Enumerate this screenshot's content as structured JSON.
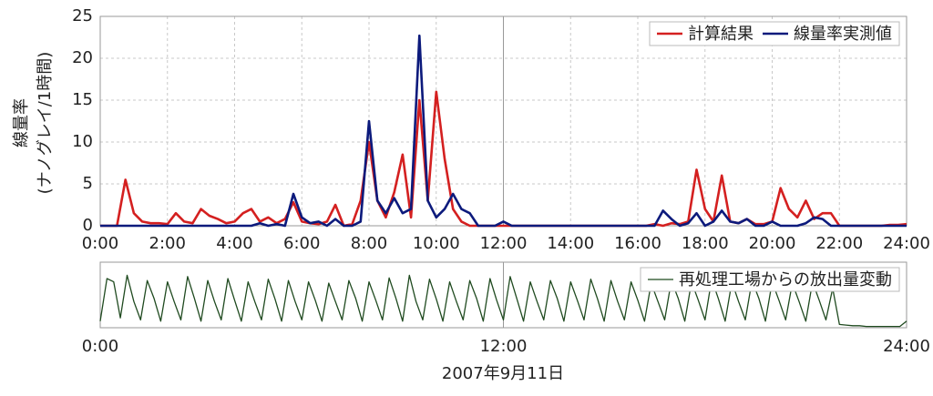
{
  "chart_data": [
    {
      "type": "line",
      "ylabel": [
        "線量率",
        "(ナノグレイ/1時間)"
      ],
      "x": [
        0,
        0.25,
        0.5,
        0.75,
        1,
        1.25,
        1.5,
        1.75,
        2,
        2.25,
        2.5,
        2.75,
        3,
        3.25,
        3.5,
        3.75,
        4,
        4.25,
        4.5,
        4.75,
        5,
        5.25,
        5.5,
        5.75,
        6,
        6.25,
        6.5,
        6.75,
        7,
        7.25,
        7.5,
        7.75,
        8,
        8.25,
        8.5,
        8.75,
        9,
        9.25,
        9.5,
        9.75,
        10,
        10.25,
        10.5,
        10.75,
        11,
        11.25,
        11.5,
        11.75,
        12,
        12.25,
        12.5,
        12.75,
        13,
        13.25,
        13.5,
        13.75,
        14,
        14.25,
        14.5,
        14.75,
        15,
        15.25,
        15.5,
        15.75,
        16,
        16.25,
        16.5,
        16.75,
        17,
        17.25,
        17.5,
        17.75,
        18,
        18.25,
        18.5,
        18.75,
        19,
        19.25,
        19.5,
        19.75,
        20,
        20.25,
        20.5,
        20.75,
        21,
        21.25,
        21.5,
        21.75,
        22,
        22.25,
        22.5,
        22.75,
        23,
        23.25,
        23.5,
        23.75,
        24
      ],
      "series": [
        {
          "name": "計算結果",
          "color": "#d42020",
          "values": [
            0,
            0,
            0,
            5.5,
            1.5,
            0.5,
            0.3,
            0.3,
            0.2,
            1.5,
            0.5,
            0.3,
            2,
            1.2,
            0.8,
            0.3,
            0.5,
            1.5,
            2,
            0.5,
            1,
            0.3,
            0.8,
            2.8,
            0.5,
            0.3,
            0.2,
            0.5,
            2.5,
            0,
            0.2,
            3,
            10,
            3,
            1,
            4,
            8.5,
            1,
            15,
            3,
            16,
            8,
            2,
            0.5,
            0,
            0,
            0,
            0,
            0,
            0,
            0,
            0,
            0,
            0,
            0,
            0,
            0,
            0,
            0,
            0,
            0,
            0,
            0,
            0,
            0,
            0,
            0.2,
            0,
            0.3,
            0.2,
            0.5,
            6.7,
            2,
            0.5,
            6,
            0.5,
            0.3,
            0.8,
            0.2,
            0.2,
            0.5,
            4.5,
            2,
            1,
            3,
            0.8,
            1.5,
            1.5,
            0,
            0,
            0,
            0,
            0,
            0,
            0.1,
            0.1,
            0.2
          ]
        },
        {
          "name": "線量率実測値",
          "color": "#0c1a7c",
          "values": [
            0,
            0,
            0,
            0,
            0,
            0,
            0,
            0,
            0,
            0,
            0,
            0,
            0,
            0,
            0,
            0,
            0,
            0,
            0,
            0.3,
            0,
            0.2,
            0,
            3.8,
            1,
            0.3,
            0.5,
            0,
            0.8,
            0,
            0,
            0.5,
            12.5,
            3,
            1.5,
            3.3,
            1.5,
            2,
            22.7,
            3,
            1,
            2,
            3.8,
            2,
            1.5,
            0,
            0,
            0,
            0.5,
            0,
            0,
            0,
            0,
            0,
            0,
            0,
            0,
            0,
            0,
            0,
            0,
            0,
            0,
            0,
            0,
            0,
            0,
            1.8,
            0.8,
            0,
            0.3,
            1.5,
            0,
            0.5,
            1.8,
            0.5,
            0.3,
            0.8,
            0,
            0,
            0.5,
            0,
            0,
            0,
            0.3,
            1,
            0.8,
            0,
            0,
            0,
            0,
            0,
            0,
            0,
            0,
            0,
            0
          ]
        }
      ],
      "xlim": [
        0,
        24
      ],
      "xticks": [
        {
          "value": 0,
          "label": "0:00"
        },
        {
          "value": 2,
          "label": "2:00"
        },
        {
          "value": 4,
          "label": "4:00"
        },
        {
          "value": 6,
          "label": "6:00"
        },
        {
          "value": 8,
          "label": "8:00"
        },
        {
          "value": 10,
          "label": "10:00"
        },
        {
          "value": 12,
          "label": "12:00"
        },
        {
          "value": 14,
          "label": "14:00"
        },
        {
          "value": 16,
          "label": "16:00"
        },
        {
          "value": 18,
          "label": "18:00"
        },
        {
          "value": 20,
          "label": "20:00"
        },
        {
          "value": 22,
          "label": "22:00"
        },
        {
          "value": 24,
          "label": "24:00"
        }
      ],
      "ylim": [
        0,
        25
      ],
      "yticks": [
        0,
        5,
        10,
        15,
        20,
        25
      ],
      "grid": true,
      "legend": "upper right"
    },
    {
      "type": "line",
      "xlabel": "2007年9月11日",
      "x": [
        0,
        0.2,
        0.4,
        0.6,
        0.8,
        1,
        1.2,
        1.4,
        1.6,
        1.8,
        2,
        2.2,
        2.4,
        2.6,
        2.8,
        3,
        3.2,
        3.4,
        3.6,
        3.8,
        4,
        4.2,
        4.4,
        4.6,
        4.8,
        5,
        5.2,
        5.4,
        5.6,
        5.8,
        6,
        6.2,
        6.4,
        6.6,
        6.8,
        7,
        7.2,
        7.4,
        7.6,
        7.8,
        8,
        8.2,
        8.4,
        8.6,
        8.8,
        9,
        9.2,
        9.4,
        9.6,
        9.8,
        10,
        10.2,
        10.4,
        10.6,
        10.8,
        11,
        11.2,
        11.4,
        11.6,
        11.8,
        12,
        12.2,
        12.4,
        12.6,
        12.8,
        13,
        13.2,
        13.4,
        13.6,
        13.8,
        14,
        14.2,
        14.4,
        14.6,
        14.8,
        15,
        15.2,
        15.4,
        15.6,
        15.8,
        16,
        16.2,
        16.4,
        16.6,
        16.8,
        17,
        17.2,
        17.4,
        17.6,
        17.8,
        18,
        18.2,
        18.4,
        18.6,
        18.8,
        19,
        19.2,
        19.4,
        19.6,
        19.8,
        20,
        20.2,
        20.4,
        20.6,
        20.8,
        21,
        21.2,
        21.4,
        21.6,
        21.8,
        22,
        22.2,
        22.4,
        22.6,
        22.8,
        23,
        23.2,
        23.4,
        23.6,
        23.8,
        24
      ],
      "series": [
        {
          "name": "再処理工場からの放出量変動",
          "color": "#1f4a1f",
          "values": [
            0.1,
            0.75,
            0.7,
            0.15,
            0.8,
            0.4,
            0.12,
            0.72,
            0.45,
            0.1,
            0.7,
            0.4,
            0.12,
            0.78,
            0.45,
            0.1,
            0.72,
            0.4,
            0.12,
            0.75,
            0.42,
            0.1,
            0.7,
            0.4,
            0.12,
            0.74,
            0.44,
            0.1,
            0.72,
            0.4,
            0.12,
            0.7,
            0.42,
            0.1,
            0.68,
            0.4,
            0.12,
            0.72,
            0.45,
            0.1,
            0.7,
            0.42,
            0.12,
            0.76,
            0.45,
            0.1,
            0.8,
            0.4,
            0.12,
            0.74,
            0.44,
            0.1,
            0.7,
            0.4,
            0.12,
            0.72,
            0.45,
            0.1,
            0.75,
            0.42,
            0.12,
            0.78,
            0.44,
            0.1,
            0.7,
            0.4,
            0.12,
            0.72,
            0.45,
            0.1,
            0.7,
            0.42,
            0.12,
            0.74,
            0.44,
            0.1,
            0.72,
            0.4,
            0.12,
            0.7,
            0.42,
            0.1,
            0.68,
            0.4,
            0.12,
            0.72,
            0.45,
            0.1,
            0.7,
            0.42,
            0.12,
            0.74,
            0.44,
            0.1,
            0.7,
            0.4,
            0.12,
            0.72,
            0.45,
            0.1,
            0.7,
            0.42,
            0.12,
            0.68,
            0.4,
            0.1,
            0.7,
            0.42,
            0.12,
            0.6,
            0.05,
            0.04,
            0.03,
            0.03,
            0.02,
            0.02,
            0.02,
            0.02,
            0.02,
            0.02,
            0.1
          ]
        }
      ],
      "xlim": [
        0,
        24
      ],
      "xticks": [
        {
          "value": 0,
          "label": "0:00"
        },
        {
          "value": 12,
          "label": "12:00"
        },
        {
          "value": 24,
          "label": "24:00"
        }
      ],
      "ylim": [
        0,
        1
      ],
      "grid": true,
      "legend": "upper right"
    }
  ]
}
